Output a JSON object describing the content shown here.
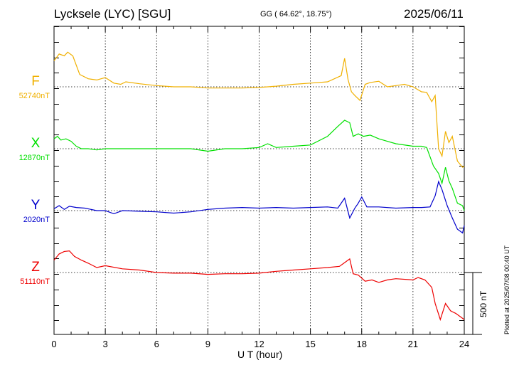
{
  "header": {
    "station": "Lycksele (LYC)  [SGU]",
    "coords": "GG ( 64.62°,  18.75°)",
    "date": "2025/06/11"
  },
  "components": [
    {
      "letter": "F",
      "baseline": "52740nT",
      "color": "#f0b000"
    },
    {
      "letter": "X",
      "baseline": "12870nT",
      "color": "#00e000"
    },
    {
      "letter": "Y",
      "baseline": "2020nT",
      "color": "#0000cc"
    },
    {
      "letter": "Z",
      "baseline": "51110nT",
      "color": "#ee0000"
    }
  ],
  "x_axis_label": "U T (hour)",
  "plotted_note": "Plotted at 2025/07/08 00:40 UT",
  "scale_bar_label": "500 nT",
  "chart_data": {
    "type": "line",
    "xlabel": "U T (hour)",
    "xlim": [
      0,
      24
    ],
    "xticks": [
      0,
      3,
      6,
      9,
      12,
      15,
      18,
      21,
      24
    ],
    "unit": "nT",
    "scale_bar_nT": 500,
    "grid": true,
    "series": [
      {
        "name": "F",
        "baseline": "52740nT",
        "color": "#f0b000",
        "points": [
          [
            0,
            -210
          ],
          [
            0.3,
            -265
          ],
          [
            0.6,
            -250
          ],
          [
            0.8,
            -280
          ],
          [
            1.1,
            -250
          ],
          [
            1.5,
            -100
          ],
          [
            2,
            -65
          ],
          [
            2.5,
            -55
          ],
          [
            3,
            -75
          ],
          [
            3.5,
            -30
          ],
          [
            3.9,
            -20
          ],
          [
            4.2,
            -40
          ],
          [
            5,
            -25
          ],
          [
            6,
            -10
          ],
          [
            7,
            0
          ],
          [
            8,
            0
          ],
          [
            9,
            10
          ],
          [
            10,
            10
          ],
          [
            11,
            10
          ],
          [
            12,
            5
          ],
          [
            13,
            -5
          ],
          [
            14,
            -20
          ],
          [
            15,
            -30
          ],
          [
            16,
            -40
          ],
          [
            16.8,
            -90
          ],
          [
            17.0,
            -230
          ],
          [
            17.2,
            -60
          ],
          [
            17.4,
            40
          ],
          [
            17.6,
            70
          ],
          [
            17.9,
            110
          ],
          [
            18.2,
            -20
          ],
          [
            18.5,
            -35
          ],
          [
            19,
            -45
          ],
          [
            19.5,
            0
          ],
          [
            20,
            -10
          ],
          [
            20.5,
            -20
          ],
          [
            21,
            0
          ],
          [
            21.5,
            40
          ],
          [
            21.8,
            45
          ],
          [
            22.1,
            120
          ],
          [
            22.3,
            70
          ],
          [
            22.5,
            500
          ],
          [
            22.7,
            560
          ],
          [
            22.9,
            360
          ],
          [
            23.1,
            450
          ],
          [
            23.3,
            400
          ],
          [
            23.6,
            600
          ],
          [
            23.9,
            650
          ],
          [
            24,
            640
          ]
        ]
      },
      {
        "name": "X",
        "baseline": "12870nT",
        "color": "#00e000",
        "points": [
          [
            0,
            -80
          ],
          [
            0.2,
            -100
          ],
          [
            0.4,
            -70
          ],
          [
            0.7,
            -80
          ],
          [
            1.0,
            -60
          ],
          [
            1.3,
            -20
          ],
          [
            1.6,
            0
          ],
          [
            2,
            0
          ],
          [
            2.5,
            10
          ],
          [
            3,
            0
          ],
          [
            4,
            0
          ],
          [
            5,
            0
          ],
          [
            6,
            0
          ],
          [
            7,
            0
          ],
          [
            8,
            0
          ],
          [
            9,
            20
          ],
          [
            10,
            0
          ],
          [
            11,
            0
          ],
          [
            12,
            -10
          ],
          [
            12.5,
            -40
          ],
          [
            13,
            -10
          ],
          [
            14,
            -20
          ],
          [
            15,
            -30
          ],
          [
            16,
            -100
          ],
          [
            16.6,
            -180
          ],
          [
            17,
            -230
          ],
          [
            17.3,
            -210
          ],
          [
            17.5,
            -100
          ],
          [
            17.8,
            -120
          ],
          [
            18.1,
            -100
          ],
          [
            18.5,
            -110
          ],
          [
            19,
            -80
          ],
          [
            19.5,
            -60
          ],
          [
            20,
            -40
          ],
          [
            21,
            -20
          ],
          [
            21.5,
            -20
          ],
          [
            21.8,
            -10
          ],
          [
            22.2,
            140
          ],
          [
            22.5,
            200
          ],
          [
            22.7,
            280
          ],
          [
            22.9,
            150
          ],
          [
            23.1,
            260
          ],
          [
            23.3,
            320
          ],
          [
            23.6,
            440
          ],
          [
            23.9,
            460
          ],
          [
            24,
            500
          ]
        ]
      },
      {
        "name": "Y",
        "baseline": "2020nT",
        "color": "#0000cc",
        "points": [
          [
            0,
            -15
          ],
          [
            0.3,
            -40
          ],
          [
            0.6,
            -10
          ],
          [
            0.9,
            -35
          ],
          [
            1.3,
            -25
          ],
          [
            1.8,
            -20
          ],
          [
            2.5,
            0
          ],
          [
            3,
            0
          ],
          [
            3.5,
            25
          ],
          [
            4,
            0
          ],
          [
            5,
            5
          ],
          [
            6,
            10
          ],
          [
            7,
            20
          ],
          [
            8,
            10
          ],
          [
            9,
            -10
          ],
          [
            10,
            -20
          ],
          [
            11,
            -25
          ],
          [
            12,
            -20
          ],
          [
            13,
            -25
          ],
          [
            14,
            -20
          ],
          [
            15,
            -25
          ],
          [
            16,
            -30
          ],
          [
            16.6,
            -20
          ],
          [
            17,
            -100
          ],
          [
            17.3,
            60
          ],
          [
            17.6,
            -20
          ],
          [
            17.8,
            -60
          ],
          [
            18,
            -110
          ],
          [
            18.3,
            -30
          ],
          [
            19,
            -30
          ],
          [
            20,
            -20
          ],
          [
            21,
            -25
          ],
          [
            21.5,
            -25
          ],
          [
            22,
            -30
          ],
          [
            22.3,
            -120
          ],
          [
            22.5,
            -235
          ],
          [
            22.7,
            -170
          ],
          [
            23,
            -40
          ],
          [
            23.3,
            60
          ],
          [
            23.6,
            150
          ],
          [
            23.9,
            180
          ],
          [
            24,
            120
          ]
        ]
      },
      {
        "name": "Z",
        "baseline": "51110nT",
        "color": "#ee0000",
        "points": [
          [
            0,
            -100
          ],
          [
            0.3,
            -150
          ],
          [
            0.6,
            -170
          ],
          [
            0.9,
            -175
          ],
          [
            1.2,
            -130
          ],
          [
            1.6,
            -100
          ],
          [
            2,
            -75
          ],
          [
            2.5,
            -40
          ],
          [
            3,
            -55
          ],
          [
            4,
            -30
          ],
          [
            5,
            -20
          ],
          [
            6,
            0
          ],
          [
            7,
            5
          ],
          [
            8,
            5
          ],
          [
            9,
            15
          ],
          [
            10,
            10
          ],
          [
            11,
            10
          ],
          [
            12,
            5
          ],
          [
            13,
            -10
          ],
          [
            14,
            -20
          ],
          [
            15,
            -30
          ],
          [
            16,
            -40
          ],
          [
            16.7,
            -50
          ],
          [
            17,
            -80
          ],
          [
            17.3,
            -110
          ],
          [
            17.5,
            10
          ],
          [
            17.8,
            20
          ],
          [
            18.2,
            70
          ],
          [
            18.6,
            60
          ],
          [
            19,
            80
          ],
          [
            19.5,
            60
          ],
          [
            20,
            50
          ],
          [
            21,
            60
          ],
          [
            21.3,
            40
          ],
          [
            21.7,
            60
          ],
          [
            22.1,
            120
          ],
          [
            22.3,
            250
          ],
          [
            22.6,
            380
          ],
          [
            22.9,
            250
          ],
          [
            23.2,
            310
          ],
          [
            23.5,
            330
          ],
          [
            23.8,
            360
          ],
          [
            24,
            380
          ]
        ]
      }
    ]
  }
}
